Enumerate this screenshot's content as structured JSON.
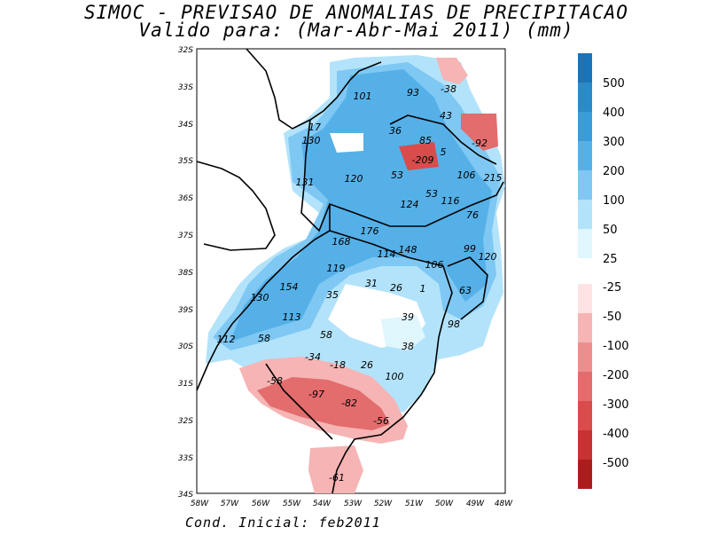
{
  "title_line1": "SIMOC - PREVISAO DE ANOMALIAS DE PRECIPITACAO",
  "title_line2": "Valido para: (Mar-Abr-Mai 2011) (mm)",
  "footer": "Cond. Inicial: feb2011",
  "lat_labels": [
    "32S",
    "33S",
    "34S",
    "35S",
    "36S",
    "37S",
    "38S",
    "39S",
    "30S",
    "31S",
    "32S",
    "33S",
    "34S"
  ],
  "lon_labels": [
    "58W",
    "57W",
    "56W",
    "55W",
    "54W",
    "53W",
    "52W",
    "51W",
    "50W",
    "49W",
    "48W"
  ],
  "colorbar_positive": [
    {
      "label": "500",
      "color": "#1b74b8"
    },
    {
      "label": "400",
      "color": "#2a8bcb"
    },
    {
      "label": "300",
      "color": "#3a9ddb"
    },
    {
      "label": "200",
      "color": "#55b0e8"
    },
    {
      "label": "100",
      "color": "#7ec8f3"
    },
    {
      "label": "50",
      "color": "#b3e3fa"
    },
    {
      "label": "25",
      "color": "#dff6fd"
    }
  ],
  "colorbar_negative": [
    {
      "label": "-25",
      "color": "#fde3e3"
    },
    {
      "label": "-50",
      "color": "#f6b4b4"
    },
    {
      "label": "-100",
      "color": "#ee8d8d"
    },
    {
      "label": "-200",
      "color": "#e36c6c"
    },
    {
      "label": "-300",
      "color": "#d94c4c"
    },
    {
      "label": "-400",
      "color": "#c73232"
    },
    {
      "label": "-500",
      "color": "#aa1d1d"
    }
  ],
  "value_labels": [
    "101",
    "93",
    "-38",
    "43",
    "17",
    "36",
    "85",
    "-92",
    "130",
    "5",
    "-209",
    "53",
    "106",
    "215",
    "131",
    "120",
    "53",
    "124",
    "116",
    "76",
    "176",
    "168",
    "148",
    "114",
    "106",
    "99",
    "120",
    "119",
    "154",
    "31",
    "26",
    "1",
    "63",
    "130",
    "35",
    "113",
    "39",
    "98",
    "58",
    "112",
    "58",
    "38",
    "-34",
    "-18",
    "26",
    "100",
    "-58",
    "-97",
    "-82",
    "-56",
    "-61"
  ],
  "colors": {
    "blue_light": "#b3e3fa",
    "blue_mid": "#7ec8f3",
    "blue": "#55b0e8",
    "red_light": "#f6b4b4",
    "red": "#ee8d8d",
    "red_dark": "#e36c6c"
  }
}
